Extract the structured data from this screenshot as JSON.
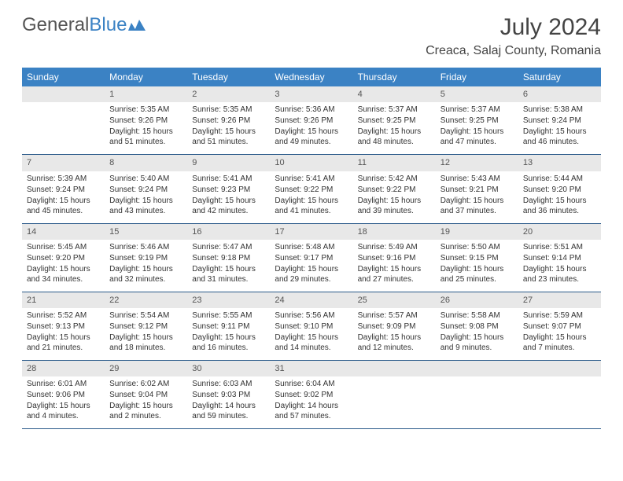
{
  "logo": {
    "text1": "General",
    "text2": "Blue"
  },
  "title": "July 2024",
  "location": "Creaca, Salaj County, Romania",
  "colors": {
    "header_bg": "#3b82c4",
    "header_text": "#ffffff",
    "daynum_bg": "#e8e8e8",
    "border": "#2a5a8a",
    "text": "#333333"
  },
  "weekdays": [
    "Sunday",
    "Monday",
    "Tuesday",
    "Wednesday",
    "Thursday",
    "Friday",
    "Saturday"
  ],
  "weeks": [
    [
      {
        "n": "",
        "sr": "",
        "ss": "",
        "dl": ""
      },
      {
        "n": "1",
        "sr": "Sunrise: 5:35 AM",
        "ss": "Sunset: 9:26 PM",
        "dl": "Daylight: 15 hours and 51 minutes."
      },
      {
        "n": "2",
        "sr": "Sunrise: 5:35 AM",
        "ss": "Sunset: 9:26 PM",
        "dl": "Daylight: 15 hours and 51 minutes."
      },
      {
        "n": "3",
        "sr": "Sunrise: 5:36 AM",
        "ss": "Sunset: 9:26 PM",
        "dl": "Daylight: 15 hours and 49 minutes."
      },
      {
        "n": "4",
        "sr": "Sunrise: 5:37 AM",
        "ss": "Sunset: 9:25 PM",
        "dl": "Daylight: 15 hours and 48 minutes."
      },
      {
        "n": "5",
        "sr": "Sunrise: 5:37 AM",
        "ss": "Sunset: 9:25 PM",
        "dl": "Daylight: 15 hours and 47 minutes."
      },
      {
        "n": "6",
        "sr": "Sunrise: 5:38 AM",
        "ss": "Sunset: 9:24 PM",
        "dl": "Daylight: 15 hours and 46 minutes."
      }
    ],
    [
      {
        "n": "7",
        "sr": "Sunrise: 5:39 AM",
        "ss": "Sunset: 9:24 PM",
        "dl": "Daylight: 15 hours and 45 minutes."
      },
      {
        "n": "8",
        "sr": "Sunrise: 5:40 AM",
        "ss": "Sunset: 9:24 PM",
        "dl": "Daylight: 15 hours and 43 minutes."
      },
      {
        "n": "9",
        "sr": "Sunrise: 5:41 AM",
        "ss": "Sunset: 9:23 PM",
        "dl": "Daylight: 15 hours and 42 minutes."
      },
      {
        "n": "10",
        "sr": "Sunrise: 5:41 AM",
        "ss": "Sunset: 9:22 PM",
        "dl": "Daylight: 15 hours and 41 minutes."
      },
      {
        "n": "11",
        "sr": "Sunrise: 5:42 AM",
        "ss": "Sunset: 9:22 PM",
        "dl": "Daylight: 15 hours and 39 minutes."
      },
      {
        "n": "12",
        "sr": "Sunrise: 5:43 AM",
        "ss": "Sunset: 9:21 PM",
        "dl": "Daylight: 15 hours and 37 minutes."
      },
      {
        "n": "13",
        "sr": "Sunrise: 5:44 AM",
        "ss": "Sunset: 9:20 PM",
        "dl": "Daylight: 15 hours and 36 minutes."
      }
    ],
    [
      {
        "n": "14",
        "sr": "Sunrise: 5:45 AM",
        "ss": "Sunset: 9:20 PM",
        "dl": "Daylight: 15 hours and 34 minutes."
      },
      {
        "n": "15",
        "sr": "Sunrise: 5:46 AM",
        "ss": "Sunset: 9:19 PM",
        "dl": "Daylight: 15 hours and 32 minutes."
      },
      {
        "n": "16",
        "sr": "Sunrise: 5:47 AM",
        "ss": "Sunset: 9:18 PM",
        "dl": "Daylight: 15 hours and 31 minutes."
      },
      {
        "n": "17",
        "sr": "Sunrise: 5:48 AM",
        "ss": "Sunset: 9:17 PM",
        "dl": "Daylight: 15 hours and 29 minutes."
      },
      {
        "n": "18",
        "sr": "Sunrise: 5:49 AM",
        "ss": "Sunset: 9:16 PM",
        "dl": "Daylight: 15 hours and 27 minutes."
      },
      {
        "n": "19",
        "sr": "Sunrise: 5:50 AM",
        "ss": "Sunset: 9:15 PM",
        "dl": "Daylight: 15 hours and 25 minutes."
      },
      {
        "n": "20",
        "sr": "Sunrise: 5:51 AM",
        "ss": "Sunset: 9:14 PM",
        "dl": "Daylight: 15 hours and 23 minutes."
      }
    ],
    [
      {
        "n": "21",
        "sr": "Sunrise: 5:52 AM",
        "ss": "Sunset: 9:13 PM",
        "dl": "Daylight: 15 hours and 21 minutes."
      },
      {
        "n": "22",
        "sr": "Sunrise: 5:54 AM",
        "ss": "Sunset: 9:12 PM",
        "dl": "Daylight: 15 hours and 18 minutes."
      },
      {
        "n": "23",
        "sr": "Sunrise: 5:55 AM",
        "ss": "Sunset: 9:11 PM",
        "dl": "Daylight: 15 hours and 16 minutes."
      },
      {
        "n": "24",
        "sr": "Sunrise: 5:56 AM",
        "ss": "Sunset: 9:10 PM",
        "dl": "Daylight: 15 hours and 14 minutes."
      },
      {
        "n": "25",
        "sr": "Sunrise: 5:57 AM",
        "ss": "Sunset: 9:09 PM",
        "dl": "Daylight: 15 hours and 12 minutes."
      },
      {
        "n": "26",
        "sr": "Sunrise: 5:58 AM",
        "ss": "Sunset: 9:08 PM",
        "dl": "Daylight: 15 hours and 9 minutes."
      },
      {
        "n": "27",
        "sr": "Sunrise: 5:59 AM",
        "ss": "Sunset: 9:07 PM",
        "dl": "Daylight: 15 hours and 7 minutes."
      }
    ],
    [
      {
        "n": "28",
        "sr": "Sunrise: 6:01 AM",
        "ss": "Sunset: 9:06 PM",
        "dl": "Daylight: 15 hours and 4 minutes."
      },
      {
        "n": "29",
        "sr": "Sunrise: 6:02 AM",
        "ss": "Sunset: 9:04 PM",
        "dl": "Daylight: 15 hours and 2 minutes."
      },
      {
        "n": "30",
        "sr": "Sunrise: 6:03 AM",
        "ss": "Sunset: 9:03 PM",
        "dl": "Daylight: 14 hours and 59 minutes."
      },
      {
        "n": "31",
        "sr": "Sunrise: 6:04 AM",
        "ss": "Sunset: 9:02 PM",
        "dl": "Daylight: 14 hours and 57 minutes."
      },
      {
        "n": "",
        "sr": "",
        "ss": "",
        "dl": ""
      },
      {
        "n": "",
        "sr": "",
        "ss": "",
        "dl": ""
      },
      {
        "n": "",
        "sr": "",
        "ss": "",
        "dl": ""
      }
    ]
  ]
}
